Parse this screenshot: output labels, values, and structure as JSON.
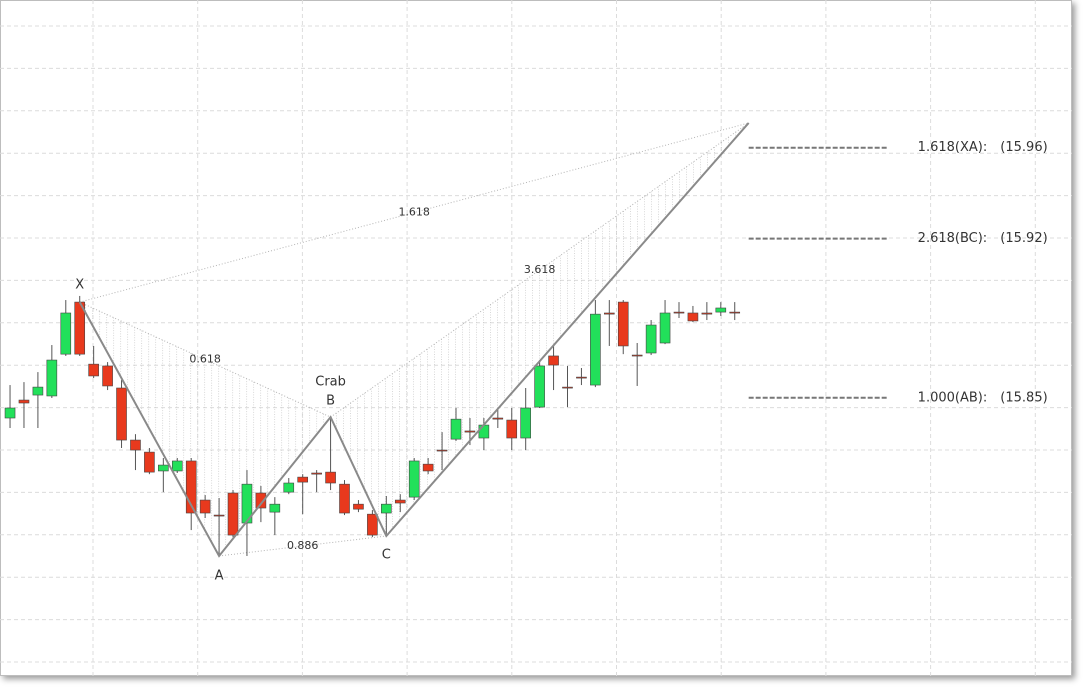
{
  "chart_data": {
    "type": "candlestick",
    "xlim": [
      -0.72,
      76.2
    ],
    "ylim": [
      15.7276,
      16.025
    ],
    "grid": true,
    "up_color": "#22e05a",
    "down_color": "#e8391d",
    "candles": {
      "open": [
        15.8411,
        15.849,
        15.8512,
        15.8508,
        15.8692,
        15.8921,
        15.8648,
        15.864,
        15.8543,
        15.8314,
        15.8261,
        15.8178,
        15.8178,
        15.8222,
        15.805,
        15.7984,
        15.8081,
        15.7949,
        15.8081,
        15.7997,
        15.8085,
        15.8151,
        15.8169,
        15.8173,
        15.812,
        15.8032,
        15.7988,
        15.7993,
        15.805,
        15.8063,
        15.8208,
        15.827,
        15.8318,
        15.8354,
        15.8323,
        15.8411,
        15.8402,
        15.8323,
        15.8459,
        15.8684,
        15.8547,
        15.8591,
        15.8556,
        15.8873,
        15.8921,
        15.8688,
        15.8697,
        15.8741,
        15.8877,
        15.8873,
        15.8873,
        15.8877,
        15.8877
      ],
      "high": [
        15.8556,
        15.8569,
        15.8613,
        15.8732,
        15.893,
        15.8948,
        15.8728,
        15.8657,
        15.8578,
        15.834,
        15.8279,
        15.8235,
        15.8235,
        15.8235,
        15.8072,
        15.8059,
        15.8094,
        15.8182,
        15.8112,
        15.8063,
        15.8147,
        15.8164,
        15.8182,
        15.8415,
        15.8138,
        15.805,
        15.8006,
        15.8068,
        15.8076,
        15.8235,
        15.8235,
        15.8349,
        15.8455,
        15.8411,
        15.8411,
        15.8446,
        15.8455,
        15.8543,
        15.8666,
        15.8732,
        15.864,
        15.8631,
        15.893,
        15.893,
        15.893,
        15.8741,
        15.8842,
        15.893,
        15.8921,
        15.8904,
        15.8921,
        15.8921,
        15.8921
      ],
      "low": [
        15.8367,
        15.8367,
        15.8367,
        15.8499,
        15.8684,
        15.8684,
        15.8587,
        15.8534,
        15.8279,
        15.8182,
        15.8164,
        15.8085,
        15.8169,
        15.7918,
        15.7971,
        15.7804,
        15.7887,
        15.7804,
        15.7953,
        15.7896,
        15.8076,
        15.7988,
        15.8085,
        15.8094,
        15.7984,
        15.7997,
        15.7887,
        15.7892,
        15.7997,
        15.805,
        15.8164,
        15.8182,
        15.831,
        15.8292,
        15.827,
        15.8367,
        15.827,
        15.827,
        15.8455,
        15.8534,
        15.8459,
        15.8556,
        15.8547,
        15.8728,
        15.8692,
        15.8552,
        15.8688,
        15.8736,
        15.8851,
        15.8833,
        15.8842,
        15.886,
        15.8842
      ],
      "close": [
        15.8455,
        15.8477,
        15.8547,
        15.8666,
        15.8873,
        15.8692,
        15.8596,
        15.8552,
        15.8314,
        15.827,
        15.8173,
        15.8204,
        15.8222,
        15.7993,
        15.7993,
        15.798,
        15.7896,
        15.812,
        15.8015,
        15.8032,
        15.8125,
        15.8129,
        15.8164,
        15.8125,
        15.7993,
        15.801,
        15.7896,
        15.8032,
        15.8037,
        15.8222,
        15.8178,
        15.8266,
        15.8406,
        15.8349,
        15.838,
        15.8406,
        15.8323,
        15.8455,
        15.864,
        15.8644,
        15.8543,
        15.8587,
        15.8868,
        15.8868,
        15.8728,
        15.8684,
        15.882,
        15.8873,
        15.8873,
        15.8838,
        15.8868,
        15.8895,
        15.8873
      ]
    },
    "pattern": {
      "name": "Crab",
      "labels": [
        "X",
        "A",
        "B",
        "C",
        null
      ],
      "x": [
        5,
        15,
        23,
        27,
        53
      ],
      "values": [
        15.8921,
        15.7804,
        15.8415,
        15.7892,
        15.9709
      ],
      "ratios": [
        0.618,
        1.618,
        3.618,
        0.886
      ]
    },
    "levels": {
      "names": [
        "1.618(XA):",
        "2.618(BC):",
        "1.000(AB):"
      ],
      "values": [
        15.96,
        15.92,
        15.85
      ],
      "value_labels": [
        "(15.96)",
        "(15.92)",
        "(15.85)"
      ]
    }
  }
}
